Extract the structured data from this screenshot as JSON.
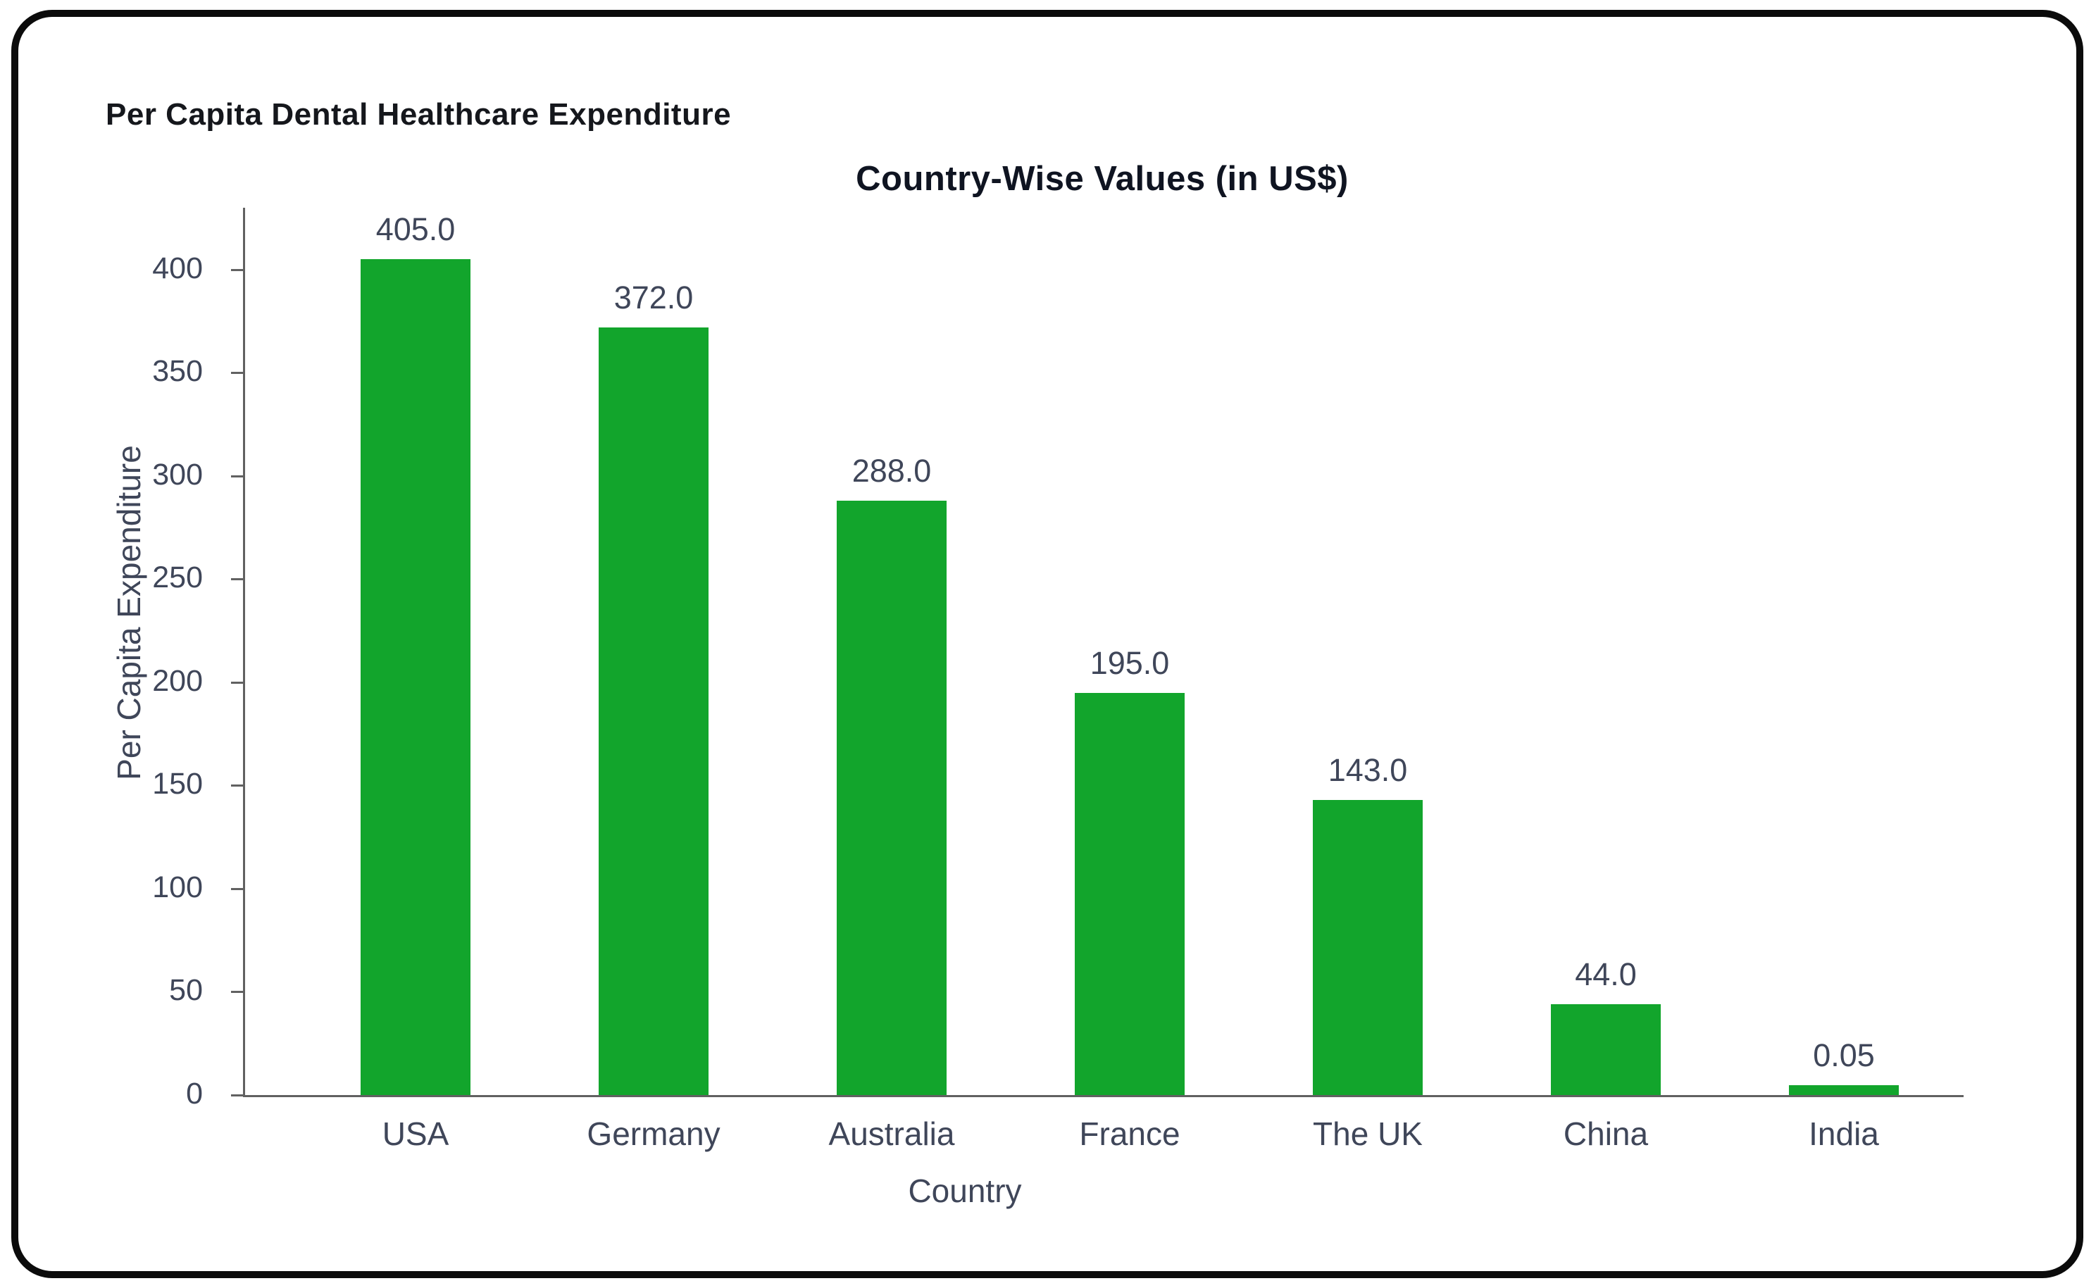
{
  "page": {
    "report_title": "Per Capita Dental Healthcare Expenditure"
  },
  "chart_data": {
    "type": "bar",
    "title": "Country-Wise Values (in US$)",
    "xlabel": "Country",
    "ylabel": "Per Capita Expenditure",
    "categories": [
      "USA",
      "Germany",
      "Australia",
      "France",
      "The UK",
      "China",
      "India"
    ],
    "values": [
      405.0,
      372.0,
      288.0,
      195.0,
      143.0,
      44.0,
      0.05
    ],
    "value_labels": [
      "405.0",
      "372.0",
      "288.0",
      "195.0",
      "143.0",
      "44.0",
      "0.05"
    ],
    "yticks": [
      0,
      50,
      100,
      150,
      200,
      250,
      300,
      350,
      400
    ],
    "ylim": [
      0,
      430
    ],
    "grid": false,
    "legend": false,
    "colors": {
      "bar": "#12a52c",
      "labels": "#3f4659",
      "axis": "#616161",
      "chart_title": "#0f1421",
      "header": "#15171c",
      "frame_border": "#0b0b0b"
    }
  }
}
